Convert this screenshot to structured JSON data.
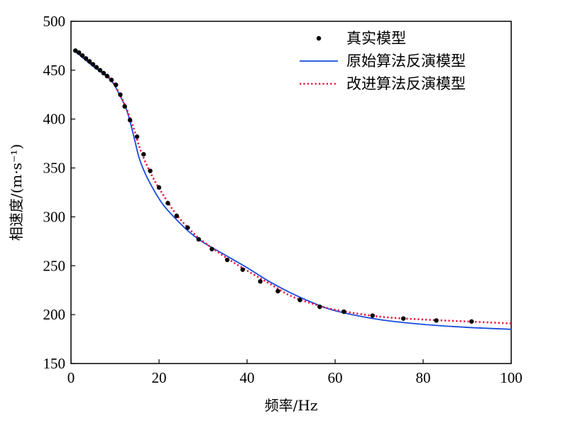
{
  "chart_data": {
    "type": "scatter",
    "xlabel": "频率/Hz",
    "ylabel": "相速度/(m·s⁻¹)",
    "xlim": [
      0,
      100
    ],
    "ylim": [
      150,
      500
    ],
    "xticks": [
      0,
      20,
      40,
      60,
      80,
      100
    ],
    "yticks": [
      150,
      200,
      250,
      300,
      350,
      400,
      450,
      500
    ],
    "legend_position": "top-right",
    "series": [
      {
        "name": "真实模型",
        "kind": "markers",
        "color": "#000000",
        "x": [
          1.0,
          1.8,
          2.6,
          3.4,
          4.2,
          5.0,
          5.8,
          6.6,
          7.4,
          8.2,
          9.2,
          10.2,
          11.2,
          12.2,
          13.4,
          15.0,
          16.5,
          18.0,
          20.0,
          22.0,
          24.0,
          26.5,
          29.0,
          32.0,
          35.5,
          39.0,
          43.0,
          47.0,
          52.0,
          56.5,
          62.0,
          68.5,
          75.5,
          83.0,
          91.0
        ],
        "y": [
          470,
          468,
          465,
          462,
          459,
          456,
          453,
          450,
          447,
          444,
          440,
          435,
          425,
          413,
          399,
          382,
          364,
          347,
          330,
          314,
          301,
          289,
          277,
          267,
          256,
          246,
          234,
          224,
          215,
          208,
          203,
          199,
          196,
          194,
          193
        ]
      },
      {
        "name": "原始算法反演模型",
        "kind": "line",
        "color": "#1a4cdc",
        "x": [
          1,
          5,
          9,
          11,
          12.5,
          13.5,
          14.5,
          15.5,
          17,
          19,
          21,
          24,
          27,
          30,
          35,
          40,
          45,
          50,
          55,
          60,
          70,
          80,
          90,
          100
        ],
        "y": [
          469,
          454,
          440,
          425,
          411,
          396,
          378,
          360,
          343,
          326,
          312,
          297,
          284,
          274,
          261,
          248,
          234,
          222,
          212,
          204,
          195,
          190,
          187,
          185
        ]
      },
      {
        "name": "改进算法反演模型",
        "kind": "dotted",
        "color": "#e8143c",
        "x": [
          1,
          5,
          9,
          11,
          12.5,
          13.5,
          14.5,
          15.5,
          17,
          19,
          21,
          24,
          27,
          30,
          35,
          40,
          45,
          50,
          55,
          60,
          70,
          80,
          90,
          100
        ],
        "y": [
          470,
          456,
          441,
          426,
          412,
          400,
          387,
          372,
          355,
          337,
          322,
          302,
          287,
          275,
          259,
          245,
          232,
          219,
          211,
          205,
          198,
          195,
          193,
          191
        ]
      }
    ]
  }
}
